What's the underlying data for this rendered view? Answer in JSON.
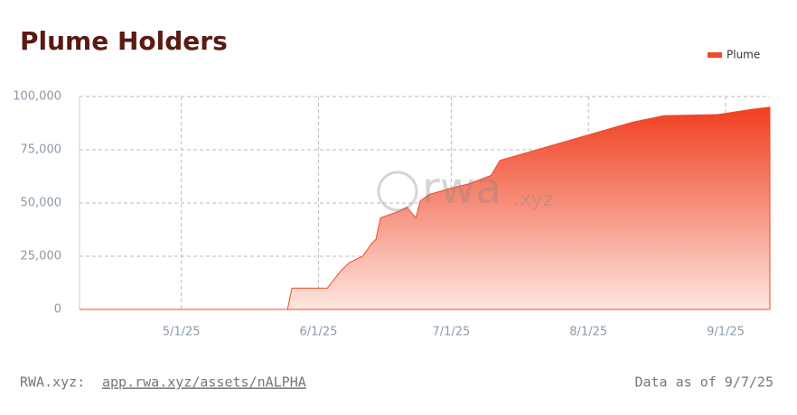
{
  "chart_data": {
    "type": "area",
    "title": "Plume Holders",
    "watermark": [
      "rwa",
      ".xyz"
    ],
    "legend": "top-right",
    "grid": true,
    "x": [
      "2025-04-08",
      "2025-05-25",
      "2025-05-26",
      "2025-06-03",
      "2025-06-06",
      "2025-06-08",
      "2025-06-11",
      "2025-06-13",
      "2025-06-14",
      "2025-06-15",
      "2025-06-19",
      "2025-06-21",
      "2025-06-23",
      "2025-06-24",
      "2025-06-26",
      "2025-07-01",
      "2025-07-05",
      "2025-07-10",
      "2025-07-12",
      "2025-07-17",
      "2025-08-01",
      "2025-08-11",
      "2025-08-18",
      "2025-08-30",
      "2025-09-07",
      "2025-09-11"
    ],
    "series": [
      {
        "name": "Plume",
        "color": "#f04a2a",
        "values": [
          0,
          0,
          10000,
          10000,
          18000,
          22000,
          25000,
          31000,
          33000,
          43000,
          46000,
          48000,
          43000,
          51000,
          54000,
          57000,
          59000,
          63000,
          70000,
          73000,
          82000,
          88000,
          91000,
          91500,
          94000,
          95000
        ]
      }
    ],
    "xlim": [
      "2025-04-08",
      "2025-09-11"
    ],
    "xticks": [
      {
        "value": "2025-05-01",
        "label": "5/1/25"
      },
      {
        "value": "2025-06-01",
        "label": "6/1/25"
      },
      {
        "value": "2025-07-01",
        "label": "7/1/25"
      },
      {
        "value": "2025-08-01",
        "label": "8/1/25"
      },
      {
        "value": "2025-09-01",
        "label": "9/1/25"
      }
    ],
    "ylim": [
      0,
      100000
    ],
    "yticks": [
      0,
      {
        "value": 25000,
        "label": "25,000"
      },
      {
        "value": 50000,
        "label": "50,000"
      },
      {
        "value": 75000,
        "label": "75,000"
      },
      {
        "value": 100000,
        "label": "100,000"
      }
    ]
  },
  "footer": {
    "source": "RWA.xyz:",
    "link": "app.rwa.xyz/assets/nALPHA",
    "note": "Data as of 9/7/25"
  }
}
